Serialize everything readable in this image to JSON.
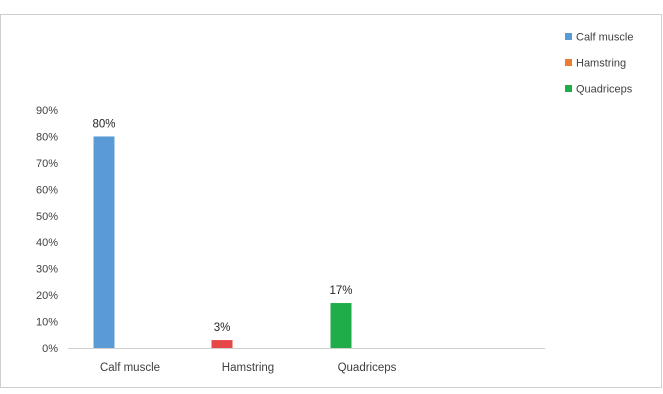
{
  "chart_data": {
    "type": "bar",
    "categories": [
      "Calf muscle",
      "Hamstring",
      "Quadriceps"
    ],
    "values": [
      80,
      3,
      17
    ],
    "data_labels": [
      "80%",
      "3%",
      "17%"
    ],
    "colors": [
      "#5b9bd5",
      "#e8474a",
      "#1fad4a"
    ],
    "ylim": [
      0,
      90
    ],
    "yticks": [
      "0%",
      "10%",
      "20%",
      "30%",
      "40%",
      "50%",
      "60%",
      "70%",
      "80%",
      "90%"
    ],
    "legend": {
      "placement": "right",
      "items": [
        {
          "label": "Calf muscle",
          "color": "#5b9bd5"
        },
        {
          "label": "Hamstring",
          "color": "#ed7d31"
        },
        {
          "label": "Quadriceps",
          "color": "#1fad4a"
        }
      ]
    },
    "grid": false
  }
}
